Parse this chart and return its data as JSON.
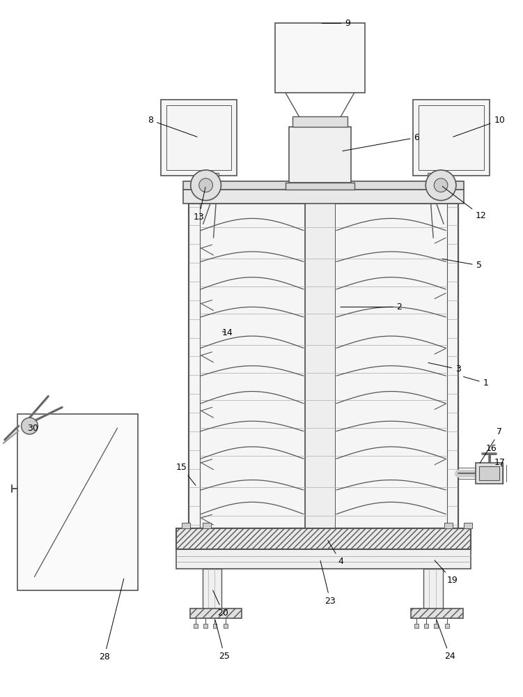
{
  "bg_color": "#ffffff",
  "lc": "#555555",
  "lw": 1.0,
  "fontsize": 8.5
}
